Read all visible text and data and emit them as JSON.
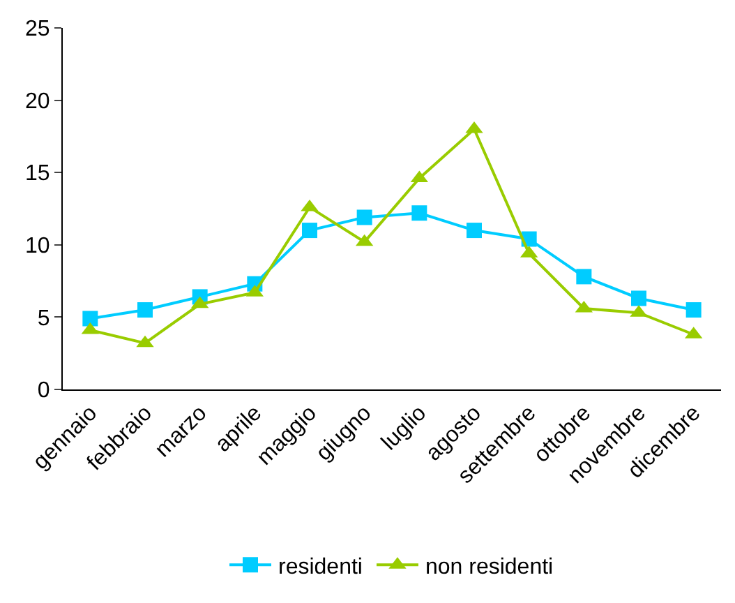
{
  "chart_data": {
    "type": "line",
    "categories": [
      "gennaio",
      "febbraio",
      "marzo",
      "aprile",
      "maggio",
      "giugno",
      "luglio",
      "agosto",
      "settembre",
      "ottobre",
      "novembre",
      "dicembre"
    ],
    "series": [
      {
        "name": "residenti",
        "color": "#00ccff",
        "marker": "square",
        "values": [
          4.9,
          5.5,
          6.4,
          7.3,
          11.0,
          11.9,
          12.2,
          11.0,
          10.4,
          7.8,
          6.3,
          5.5
        ]
      },
      {
        "name": "non residenti",
        "color": "#99cc00",
        "marker": "triangle",
        "values": [
          4.1,
          3.2,
          5.9,
          6.7,
          12.6,
          10.2,
          14.6,
          18.0,
          9.4,
          5.6,
          5.3,
          3.8
        ]
      }
    ],
    "ylim": [
      0,
      25
    ],
    "yticks": [
      0,
      5,
      10,
      15,
      20,
      25
    ],
    "legend": "bottom",
    "line_style": "solid"
  }
}
